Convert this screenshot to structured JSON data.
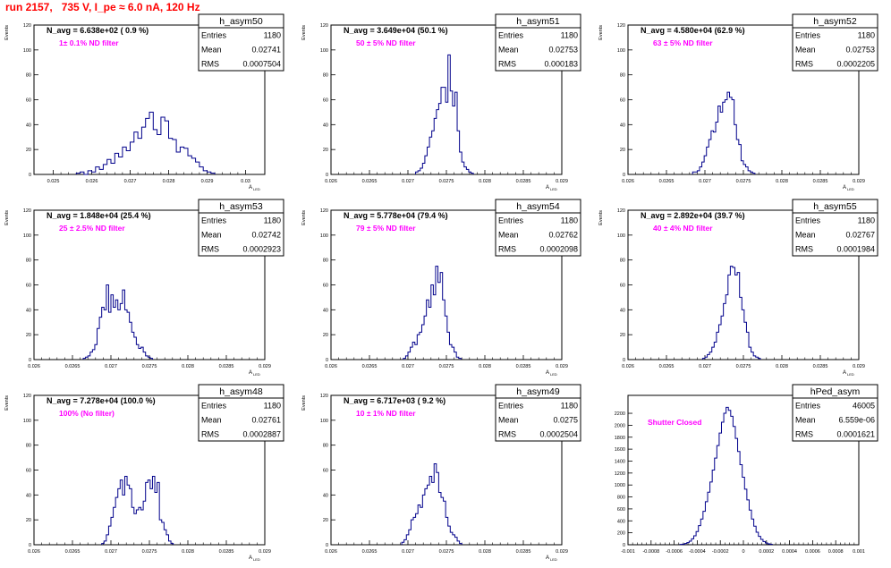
{
  "page": {
    "title": "run 2157,   735 V, I_pe ≈ 6.0 nA, 120 Hz"
  },
  "style": {
    "histColor": "#00008b",
    "titleColor": "#ff0000",
    "annotColor": "#ff00ff",
    "frameColor": "#000000"
  },
  "chart_data": [
    {
      "type": "bar",
      "name": "h_asym50",
      "stats": {
        "entries": "1180",
        "mean": "0.02741",
        "rms": "0.0007504"
      },
      "navg": "N_avg = 6.638e+02 ( 0.9 %)",
      "annotation": "1± 0.1% ND filter",
      "xlabel": "A_LED",
      "ylabel": "Events",
      "xlim": [
        0.0245,
        0.0305
      ],
      "ylim": [
        0,
        120
      ],
      "xticks": [
        "0.025",
        "0.026",
        "0.027",
        "0.028",
        "0.029",
        "0.03"
      ],
      "xtick_values": [
        0.025,
        0.026,
        0.027,
        0.028,
        0.029,
        0.03
      ],
      "yticks": [
        "0",
        "20",
        "40",
        "60",
        "80",
        "100",
        "120"
      ],
      "ytick_values": [
        0,
        20,
        40,
        60,
        80,
        100,
        120
      ],
      "bin_start": 0.0256,
      "bin_width": 0.0001,
      "values": [
        1,
        2,
        0,
        3,
        2,
        6,
        4,
        8,
        12,
        9,
        17,
        14,
        22,
        19,
        26,
        34,
        29,
        38,
        45,
        50,
        36,
        32,
        46,
        43,
        29,
        28,
        18,
        22,
        21,
        15,
        13,
        10,
        6,
        3,
        2,
        1
      ]
    },
    {
      "type": "bar",
      "name": "h_asym51",
      "stats": {
        "entries": "1180",
        "mean": "0.02753",
        "rms": "0.000183"
      },
      "navg": "N_avg = 3.649e+04 (50.1 %)",
      "annotation": "50 ± 5% ND filter",
      "xlabel": "A_LED",
      "ylabel": "Events",
      "xlim": [
        0.026,
        0.029
      ],
      "ylim": [
        0,
        120
      ],
      "xticks": [
        "0.026",
        "0.0265",
        "0.027",
        "0.0275",
        "0.028",
        "0.0285",
        "0.029"
      ],
      "xtick_values": [
        0.026,
        0.0265,
        0.027,
        0.0275,
        0.028,
        0.0285,
        0.029
      ],
      "yticks": [
        "0",
        "20",
        "40",
        "60",
        "80",
        "100",
        "120"
      ],
      "ytick_values": [
        0,
        20,
        40,
        60,
        80,
        100,
        120
      ],
      "bin_start": 0.0271,
      "bin_width": 3e-05,
      "values": [
        2,
        3,
        5,
        9,
        15,
        22,
        30,
        35,
        45,
        52,
        57,
        70,
        70,
        58,
        96,
        67,
        55,
        66,
        35,
        18,
        10,
        6,
        4,
        2,
        1
      ]
    },
    {
      "type": "bar",
      "name": "h_asym52",
      "stats": {
        "entries": "1180",
        "mean": "0.02753",
        "rms": "0.0002205"
      },
      "navg": "N_avg = 4.580e+04 (62.9 %)",
      "annotation": "63 ± 5% ND filter",
      "xlabel": "A_LED",
      "ylabel": "Events",
      "xlim": [
        0.026,
        0.029
      ],
      "ylim": [
        0,
        120
      ],
      "xticks": [
        "0.026",
        "0.0265",
        "0.027",
        "0.0275",
        "0.028",
        "0.0285",
        "0.029"
      ],
      "xtick_values": [
        0.026,
        0.0265,
        0.027,
        0.0275,
        0.028,
        0.0285,
        0.029
      ],
      "yticks": [
        "0",
        "20",
        "40",
        "60",
        "80",
        "100",
        "120"
      ],
      "ytick_values": [
        0,
        20,
        40,
        60,
        80,
        100,
        120
      ],
      "bin_start": 0.02684,
      "bin_width": 3e-05,
      "values": [
        2,
        2,
        3,
        6,
        10,
        15,
        22,
        28,
        35,
        34,
        42,
        55,
        50,
        58,
        60,
        66,
        62,
        60,
        40,
        28,
        24,
        11,
        8,
        6,
        3,
        2,
        1
      ]
    },
    {
      "type": "bar",
      "name": "h_asym53",
      "stats": {
        "entries": "1180",
        "mean": "0.02742",
        "rms": "0.0002923"
      },
      "navg": "N_avg = 1.848e+04 (25.4 %)",
      "annotation": "25 ± 2.5% ND filter",
      "xlabel": "A_LED",
      "ylabel": "Events",
      "xlim": [
        0.026,
        0.029
      ],
      "ylim": [
        0,
        120
      ],
      "xticks": [
        "0.026",
        "0.0265",
        "0.027",
        "0.0275",
        "0.028",
        "0.0285",
        "0.029"
      ],
      "xtick_values": [
        0.026,
        0.0265,
        0.027,
        0.0275,
        0.028,
        0.0285,
        0.029
      ],
      "yticks": [
        "0",
        "20",
        "40",
        "60",
        "80",
        "100",
        "120"
      ],
      "ytick_values": [
        0,
        20,
        40,
        60,
        80,
        100,
        120
      ],
      "bin_start": 0.02664,
      "bin_width": 3e-05,
      "values": [
        1,
        2,
        3,
        6,
        8,
        12,
        25,
        34,
        42,
        40,
        60,
        38,
        52,
        42,
        48,
        40,
        45,
        56,
        40,
        38,
        30,
        22,
        18,
        12,
        9,
        10,
        6,
        3,
        2,
        1
      ]
    },
    {
      "type": "bar",
      "name": "h_asym54",
      "stats": {
        "entries": "1180",
        "mean": "0.02762",
        "rms": "0.0002098"
      },
      "navg": "N_avg = 5.778e+04 (79.4 %)",
      "annotation": "79 ± 5% ND filter",
      "xlabel": "A_LED",
      "ylabel": "Events",
      "xlim": [
        0.026,
        0.029
      ],
      "ylim": [
        0,
        120
      ],
      "xticks": [
        "0.026",
        "0.0265",
        "0.027",
        "0.0275",
        "0.028",
        "0.0285",
        "0.029"
      ],
      "xtick_values": [
        0.026,
        0.0265,
        0.027,
        0.0275,
        0.028,
        0.0285,
        0.029
      ],
      "yticks": [
        "0",
        "20",
        "40",
        "60",
        "80",
        "100",
        "120"
      ],
      "ytick_values": [
        0,
        20,
        40,
        60,
        80,
        100,
        120
      ],
      "bin_start": 0.02694,
      "bin_width": 3e-05,
      "values": [
        1,
        3,
        6,
        10,
        14,
        12,
        20,
        22,
        28,
        35,
        48,
        42,
        60,
        52,
        75,
        62,
        70,
        48,
        35,
        22,
        12,
        10,
        6,
        2,
        1
      ]
    },
    {
      "type": "bar",
      "name": "h_asym55",
      "stats": {
        "entries": "1180",
        "mean": "0.02767",
        "rms": "0.0001984"
      },
      "navg": "N_avg = 2.892e+04 (39.7 %)",
      "annotation": "40 ± 4% ND filter",
      "xlabel": "A_LED",
      "ylabel": "Events",
      "xlim": [
        0.026,
        0.029
      ],
      "ylim": [
        0,
        120
      ],
      "xticks": [
        "0.026",
        "0.0265",
        "0.027",
        "0.0275",
        "0.028",
        "0.0285",
        "0.029"
      ],
      "xtick_values": [
        0.026,
        0.0265,
        0.027,
        0.0275,
        0.028,
        0.0285,
        0.029
      ],
      "yticks": [
        "0",
        "20",
        "40",
        "60",
        "80",
        "100",
        "120"
      ],
      "ytick_values": [
        0,
        20,
        40,
        60,
        80,
        100,
        120
      ],
      "bin_start": 0.02697,
      "bin_width": 3e-05,
      "values": [
        1,
        2,
        4,
        6,
        10,
        14,
        22,
        28,
        35,
        45,
        52,
        68,
        75,
        74,
        68,
        70,
        50,
        40,
        30,
        22,
        10,
        6,
        3,
        2,
        1
      ]
    },
    {
      "type": "bar",
      "name": "h_asym48",
      "stats": {
        "entries": "1180",
        "mean": "0.02761",
        "rms": "0.0002887"
      },
      "navg": "N_avg = 7.278e+04 (100.0 %)",
      "annotation": "100% (No filter)",
      "xlabel": "A_LED",
      "ylabel": "Events",
      "xlim": [
        0.026,
        0.029
      ],
      "ylim": [
        0,
        120
      ],
      "xticks": [
        "0.026",
        "0.0265",
        "0.027",
        "0.0275",
        "0.028",
        "0.0285",
        "0.029"
      ],
      "xtick_values": [
        0.026,
        0.0265,
        0.027,
        0.0275,
        0.028,
        0.0285,
        0.029
      ],
      "yticks": [
        "0",
        "20",
        "40",
        "60",
        "80",
        "100",
        "120"
      ],
      "ytick_values": [
        0,
        20,
        40,
        60,
        80,
        100,
        120
      ],
      "bin_start": 0.02688,
      "bin_width": 3e-05,
      "values": [
        1,
        3,
        8,
        15,
        22,
        30,
        38,
        45,
        52,
        40,
        55,
        48,
        45,
        30,
        25,
        28,
        30,
        28,
        35,
        50,
        52,
        45,
        55,
        42,
        50,
        20,
        18,
        12,
        8,
        3,
        1
      ]
    },
    {
      "type": "bar",
      "name": "h_asym49",
      "stats": {
        "entries": "1180",
        "mean": "0.0275",
        "rms": "0.0002504"
      },
      "navg": "N_avg = 6.717e+03 ( 9.2 %)",
      "annotation": "10 ± 1% ND filter",
      "xlabel": "A_LED",
      "ylabel": "Events",
      "xlim": [
        0.026,
        0.029
      ],
      "ylim": [
        0,
        120
      ],
      "xticks": [
        "0.026",
        "0.0265",
        "0.027",
        "0.0275",
        "0.028",
        "0.0285",
        "0.029"
      ],
      "xtick_values": [
        0.026,
        0.0265,
        0.027,
        0.0275,
        0.028,
        0.0285,
        0.029
      ],
      "yticks": [
        "0",
        "20",
        "40",
        "60",
        "80",
        "100",
        "120"
      ],
      "ytick_values": [
        0,
        20,
        40,
        60,
        80,
        100,
        120
      ],
      "bin_start": 0.02692,
      "bin_width": 3e-05,
      "values": [
        2,
        4,
        8,
        12,
        20,
        22,
        25,
        32,
        30,
        40,
        45,
        48,
        55,
        50,
        65,
        58,
        42,
        38,
        35,
        22,
        15,
        10,
        8,
        6,
        3,
        1
      ]
    },
    {
      "type": "bar",
      "name": "hPed_asym",
      "stats": {
        "entries": "46005",
        "mean": "6.559e-06",
        "rms": "0.0001621"
      },
      "navg": "",
      "annotation": "Shutter Closed",
      "xlabel": "",
      "ylabel": "",
      "xlim": [
        -0.001,
        0.001
      ],
      "ylim": [
        0,
        2500
      ],
      "xticks": [
        "-0.001",
        "-0.0008",
        "-0.0006",
        "-0.0004",
        "-0.0002",
        "0",
        "0.0002",
        "0.0004",
        "0.0006",
        "0.0008",
        "0.001"
      ],
      "xtick_values": [
        -0.001,
        -0.0008,
        -0.0006,
        -0.0004,
        -0.0002,
        0,
        0.0002,
        0.0004,
        0.0006,
        0.0008,
        0.001
      ],
      "yticks": [
        "0",
        "200",
        "400",
        "600",
        "800",
        "1000",
        "1200",
        "1400",
        "1600",
        "1800",
        "2000",
        "2200"
      ],
      "ytick_values": [
        0,
        200,
        400,
        600,
        800,
        1000,
        1200,
        1400,
        1600,
        1800,
        2000,
        2200
      ],
      "bin_start": -0.00055,
      "bin_width": 2e-05,
      "values": [
        5,
        10,
        20,
        35,
        60,
        100,
        150,
        220,
        320,
        430,
        560,
        720,
        880,
        1050,
        1250,
        1450,
        1660,
        1870,
        2050,
        2200,
        2300,
        2250,
        2150,
        1980,
        1780,
        1560,
        1340,
        1130,
        930,
        750,
        580,
        430,
        310,
        210,
        140,
        90,
        55,
        30,
        15,
        8
      ]
    }
  ]
}
